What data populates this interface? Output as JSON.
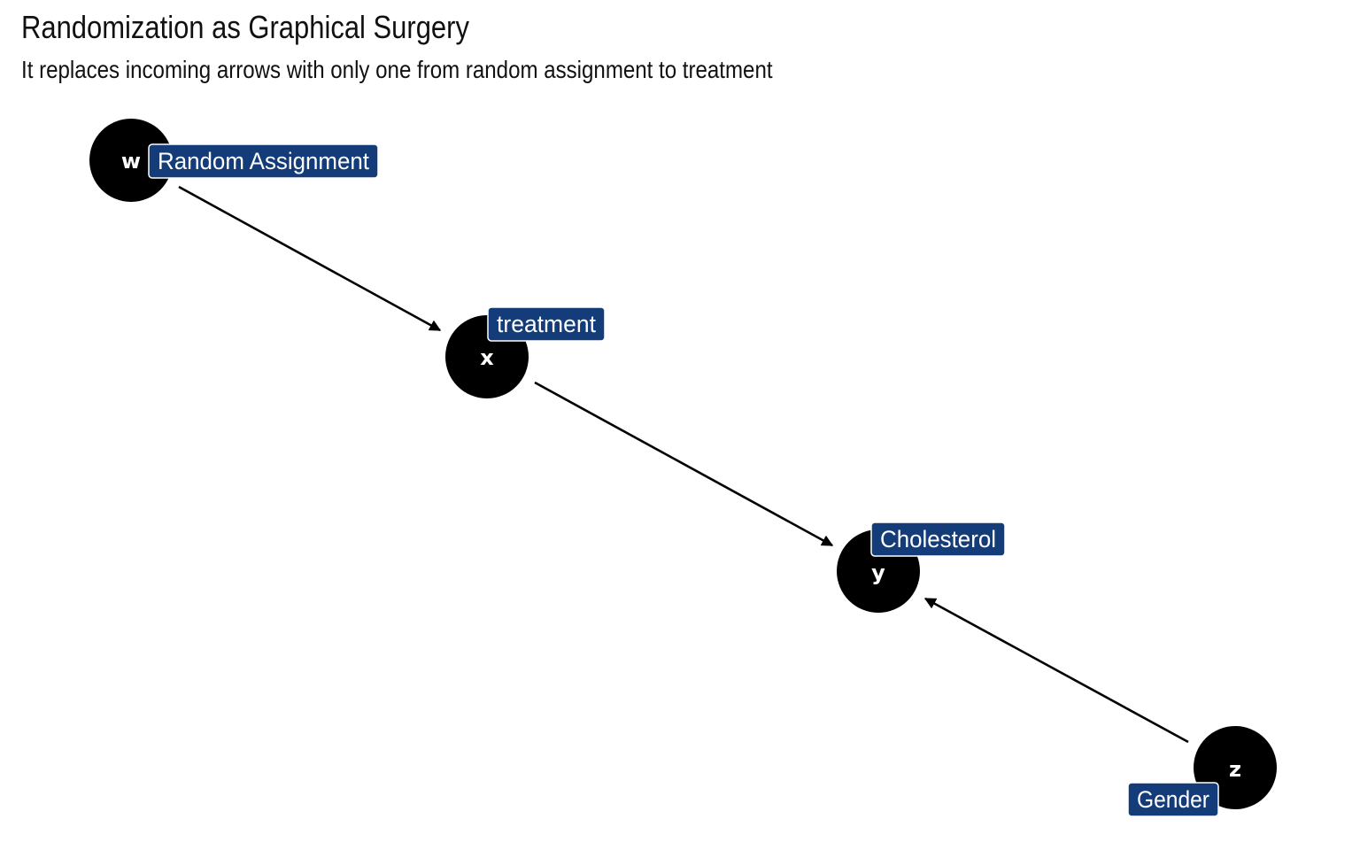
{
  "title": "Randomization as Graphical Surgery",
  "subtitle": "It replaces incoming arrows with only one from random assignment to treatment",
  "colors": {
    "node_fill": "#000000",
    "node_text": "#ffffff",
    "label_fill": "#143c78",
    "label_border": "#ffffff",
    "label_text": "#ffffff",
    "edge": "#000000"
  },
  "nodes": [
    {
      "id": "w",
      "letter": "w",
      "label": "Random Assignment"
    },
    {
      "id": "x",
      "letter": "x",
      "label": "treatment"
    },
    {
      "id": "y",
      "letter": "y",
      "label": "Cholesterol"
    },
    {
      "id": "z",
      "letter": "z",
      "label": "Gender"
    }
  ],
  "edges": [
    {
      "from": "w",
      "to": "x"
    },
    {
      "from": "x",
      "to": "y"
    },
    {
      "from": "z",
      "to": "y"
    }
  ]
}
